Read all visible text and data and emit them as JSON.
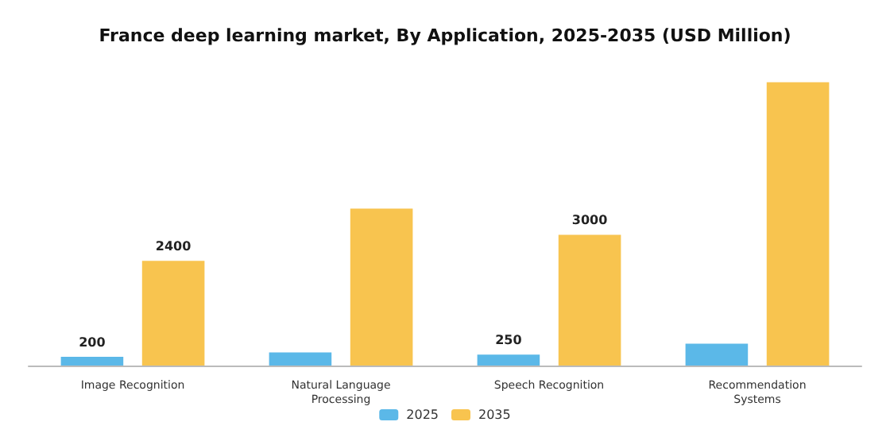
{
  "chart_data": {
    "type": "bar",
    "title": "France deep learning market, By Application, 2025-2035 (USD Million)",
    "categories": [
      "Image Recognition",
      "Natural Language\nProcessing",
      "Speech Recognition",
      "Recommendation\nSystems"
    ],
    "series": [
      {
        "name": "2025",
        "color": "#5bb8e8",
        "values": [
          200,
          300,
          250,
          500
        ],
        "value_labels": [
          "200",
          null,
          "250",
          null
        ]
      },
      {
        "name": "2035",
        "color": "#f8c44f",
        "values": [
          2400,
          3600,
          3000,
          6500
        ],
        "value_labels": [
          "2400",
          null,
          "3000",
          null
        ]
      }
    ],
    "legend": "bottom",
    "grid": false
  }
}
